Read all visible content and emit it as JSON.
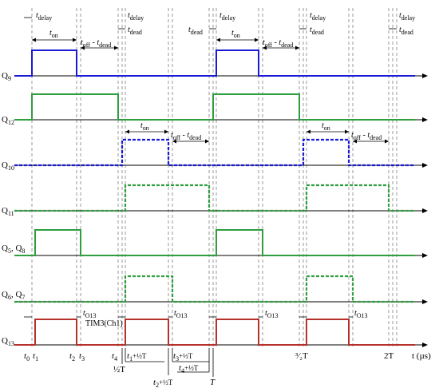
{
  "annotations": {
    "t_delay": {
      "base": "t",
      "sub": "delay"
    },
    "t_on": {
      "base": "t",
      "sub": "on"
    },
    "t_dead": {
      "base": "t",
      "sub": "dead"
    },
    "t_off_minus_dead": {
      "base": "t",
      "sub": "off",
      "mid": " - ",
      "base2": "t",
      "sub2": "dead"
    },
    "t_O13": {
      "base": "t",
      "sub": "O13"
    },
    "tim_label": "TIM3(Ch1)"
  },
  "signals": [
    {
      "id": "q9",
      "name": "Q",
      "sub": "9",
      "color": "#1a1ad6",
      "style": "solid"
    },
    {
      "id": "q12",
      "name": "Q",
      "sub": "12",
      "color": "#2e9e3e",
      "style": "solid"
    },
    {
      "id": "q10",
      "name": "Q",
      "sub": "10",
      "color": "#1a1ad6",
      "style": "dashed"
    },
    {
      "id": "q11",
      "name": "Q",
      "sub": "11",
      "color": "#2e9e3e",
      "style": "dashed"
    },
    {
      "id": "q5q8",
      "name": "Q",
      "sub": "5",
      "name2": "Q",
      "sub2": "8",
      "color": "#2e9e3e",
      "style": "solid"
    },
    {
      "id": "q6q7",
      "name": "Q",
      "sub": "6",
      "name2": "Q",
      "sub2": "7",
      "color": "#2e9e3e",
      "style": "dashed"
    },
    {
      "id": "q13",
      "name": "Q",
      "sub": "13",
      "color": "#b5312a",
      "style": "solid"
    }
  ],
  "time_axis": {
    "label": "t (µs)",
    "ticks": [
      {
        "id": "t0",
        "base": "t",
        "sub": "0"
      },
      {
        "id": "t1",
        "base": "t",
        "sub": "1"
      },
      {
        "id": "t2",
        "base": "t",
        "sub": "2"
      },
      {
        "id": "t3",
        "base": "t",
        "sub": "3"
      },
      {
        "id": "t4",
        "base": "t",
        "sub": "4"
      },
      {
        "id": "half",
        "text": "½T"
      },
      {
        "id": "t1h",
        "base": "t",
        "sub": "1",
        "suffix": "+½T"
      },
      {
        "id": "t2h",
        "base": "t",
        "sub": "2",
        "suffix": "+½T"
      },
      {
        "id": "t3h",
        "base": "t",
        "sub": "3",
        "suffix": "+½T"
      },
      {
        "id": "t4h",
        "base": "t",
        "sub": "4",
        "suffix": "+½T"
      },
      {
        "id": "T",
        "text": "T"
      },
      {
        "id": "threehalf",
        "text": "³⁄₂T"
      },
      {
        "id": "twoT",
        "text": "2T"
      }
    ]
  }
}
